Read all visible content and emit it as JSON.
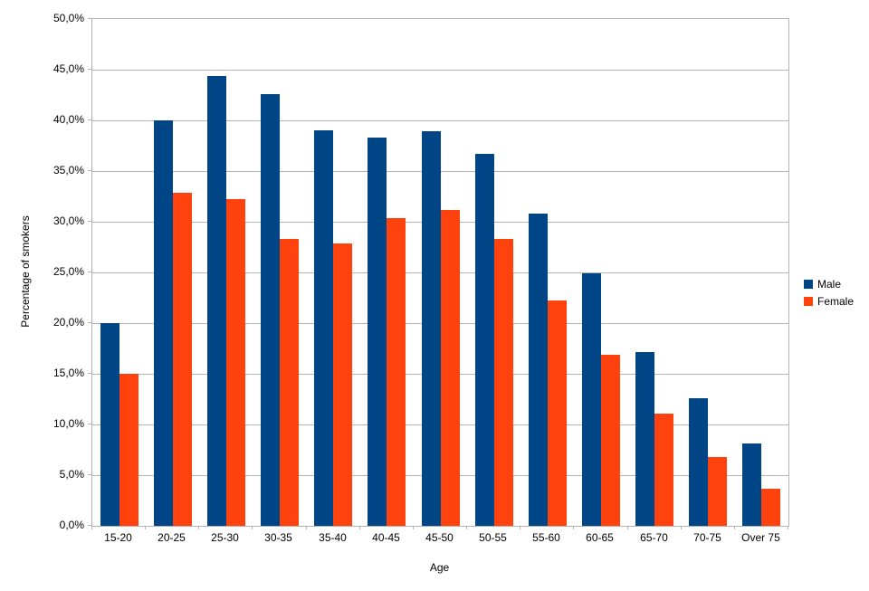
{
  "chart_data": {
    "type": "bar",
    "title": "",
    "xlabel": "Age",
    "ylabel": "Percentage of smokers",
    "categories": [
      "15-20",
      "20-25",
      "25-30",
      "30-35",
      "35-40",
      "40-45",
      "45-50",
      "50-55",
      "55-60",
      "60-65",
      "65-70",
      "70-75",
      "Over 75"
    ],
    "series": [
      {
        "name": "Male",
        "color": "#004586",
        "values": [
          20.0,
          40.0,
          44.4,
          42.6,
          39.0,
          38.3,
          38.9,
          36.7,
          30.8,
          24.9,
          17.1,
          12.6,
          8.1
        ]
      },
      {
        "name": "Female",
        "color": "#ff420e",
        "values": [
          15.0,
          32.9,
          32.2,
          28.3,
          27.9,
          30.4,
          31.2,
          28.3,
          22.2,
          16.9,
          11.1,
          6.8,
          3.7
        ]
      }
    ],
    "ylim": [
      0,
      50
    ],
    "y_tick_step": 5,
    "y_tick_labels_top_to_bottom": [
      "50,0%",
      "45,0%",
      "40,0%",
      "35,0%",
      "30,0%",
      "25,0%",
      "20,0%",
      "15,0%",
      "10,0%",
      "5,0%",
      "0,0%"
    ],
    "grid": true,
    "gridline_color": "#b3b3b3",
    "legend_position": "right",
    "background_color": "#ffffff"
  }
}
